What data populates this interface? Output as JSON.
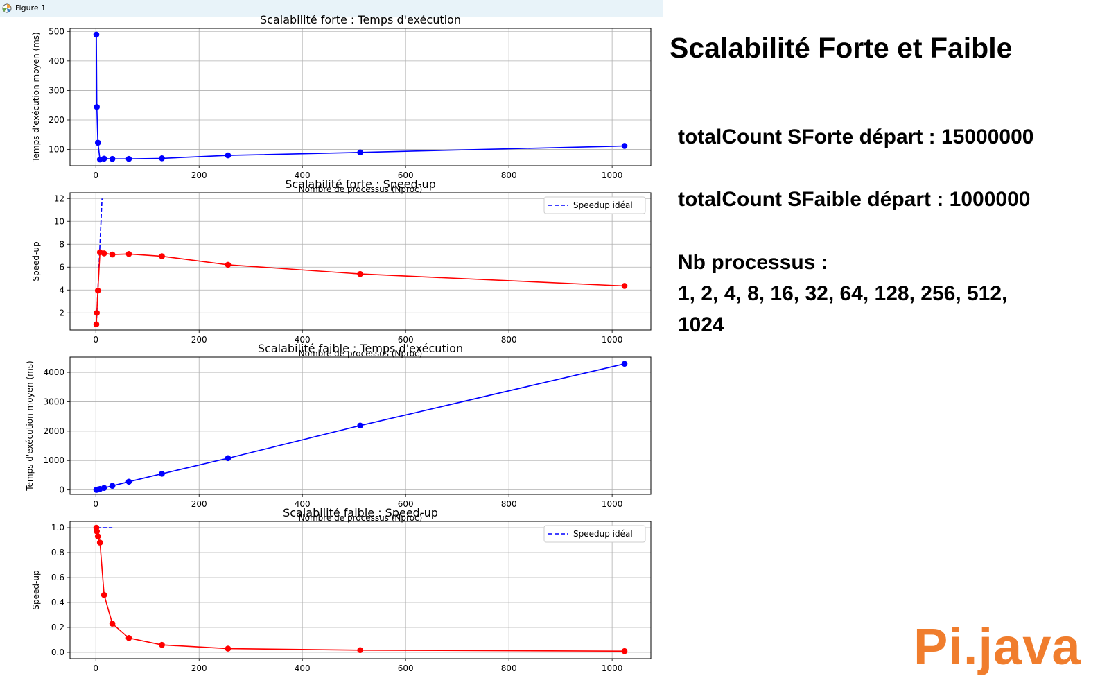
{
  "window": {
    "title": "Figure 1"
  },
  "side_panel": {
    "title": "Scalabilité Forte et Faible",
    "strong_start": "totalCount SForte départ : 15000000",
    "weak_start": "totalCount SFaible départ : 1000000",
    "nb_label": "Nb processus :",
    "nb_list_1": "1, 2, 4, 8, 16, 32, 64, 128, 256, 512,",
    "nb_list_2": "1024",
    "logo": "Pi.java"
  },
  "colors": {
    "blue": "#0000ff",
    "red": "#ff0000",
    "logo": "#f07d2d"
  },
  "chart_data": [
    {
      "type": "line",
      "title": "Scalabilité forte : Temps d'exécution",
      "xlabel": "Nombre de processus (Nproc)",
      "ylabel": "Temps d'exécution moyen (ms)",
      "xlim": [
        -50,
        1075
      ],
      "ylim": [
        45,
        510
      ],
      "xticks": [
        0,
        200,
        400,
        600,
        800,
        1000
      ],
      "yticks": [
        100,
        200,
        300,
        400,
        500
      ],
      "ytick_labels": [
        "100",
        "200",
        "300",
        "400",
        "500"
      ],
      "grid": true,
      "series": [
        {
          "color": "#0000ff",
          "style": "solid",
          "marker": "circle",
          "x": [
            1,
            2,
            4,
            8,
            16,
            32,
            64,
            128,
            256,
            512,
            1024
          ],
          "y": [
            489,
            244,
            123,
            66,
            69,
            68,
            68,
            70,
            80,
            90,
            112
          ]
        }
      ]
    },
    {
      "type": "line",
      "title": "Scalabilité forte : Speed-up",
      "xlabel": "Nombre de processus (Nproc)",
      "ylabel": "Speed-up",
      "xlim": [
        -50,
        1075
      ],
      "ylim": [
        0.5,
        12.5
      ],
      "xticks": [
        0,
        200,
        400,
        600,
        800,
        1000
      ],
      "yticks": [
        2,
        4,
        6,
        8,
        10,
        12
      ],
      "ytick_labels": [
        "2",
        "4",
        "6",
        "8",
        "10",
        "12"
      ],
      "grid": true,
      "legend_position": "top-right",
      "series": [
        {
          "name": "Speedup idéal",
          "color": "#0000ff",
          "style": "dashed",
          "marker": "none",
          "x": [
            1,
            12
          ],
          "y": [
            1,
            12
          ]
        },
        {
          "color": "#ff0000",
          "style": "solid",
          "marker": "circle",
          "x": [
            1,
            2,
            4,
            8,
            16,
            32,
            64,
            128,
            256,
            512,
            1024
          ],
          "y": [
            1.0,
            2.0,
            3.95,
            7.3,
            7.2,
            7.1,
            7.15,
            6.95,
            6.2,
            5.4,
            4.35
          ]
        }
      ]
    },
    {
      "type": "line",
      "title": "Scalabilité faible : Temps d'exécution",
      "xlabel": "Nombre de processus (Nproc)",
      "ylabel": "Temps d'exécution moyen (ms)",
      "xlim": [
        -50,
        1075
      ],
      "ylim": [
        -150,
        4520
      ],
      "xticks": [
        0,
        200,
        400,
        600,
        800,
        1000
      ],
      "yticks": [
        0,
        1000,
        2000,
        3000,
        4000
      ],
      "ytick_labels": [
        "0",
        "1000",
        "2000",
        "3000",
        "4000"
      ],
      "grid": true,
      "series": [
        {
          "color": "#0000ff",
          "style": "solid",
          "marker": "circle",
          "x": [
            1,
            2,
            4,
            8,
            16,
            32,
            64,
            128,
            256,
            512,
            1024
          ],
          "y": [
            4,
            8,
            17,
            35,
            70,
            140,
            280,
            550,
            1080,
            2190,
            4290
          ]
        }
      ]
    },
    {
      "type": "line",
      "title": "Scalabilité faible : Speed-up",
      "xlabel": "",
      "ylabel": "Speed-up",
      "xlim": [
        -50,
        1075
      ],
      "ylim": [
        -0.05,
        1.05
      ],
      "xticks": [
        0,
        200,
        400,
        600,
        800,
        1000
      ],
      "yticks": [
        0.0,
        0.2,
        0.4,
        0.6,
        0.8,
        1.0
      ],
      "ytick_labels": [
        "0.0",
        "0.2",
        "0.4",
        "0.6",
        "0.8",
        "1.0"
      ],
      "grid": true,
      "legend_position": "top-right",
      "series": [
        {
          "name": "Speedup idéal",
          "color": "#0000ff",
          "style": "dashed",
          "marker": "none",
          "x": [
            1,
            32
          ],
          "y": [
            1,
            1
          ]
        },
        {
          "color": "#ff0000",
          "style": "solid",
          "marker": "circle",
          "x": [
            1,
            2,
            4,
            8,
            16,
            32,
            64,
            128,
            256,
            512,
            1024
          ],
          "y": [
            1.0,
            0.97,
            0.93,
            0.88,
            0.46,
            0.23,
            0.115,
            0.06,
            0.03,
            0.018,
            0.01
          ]
        }
      ]
    }
  ]
}
